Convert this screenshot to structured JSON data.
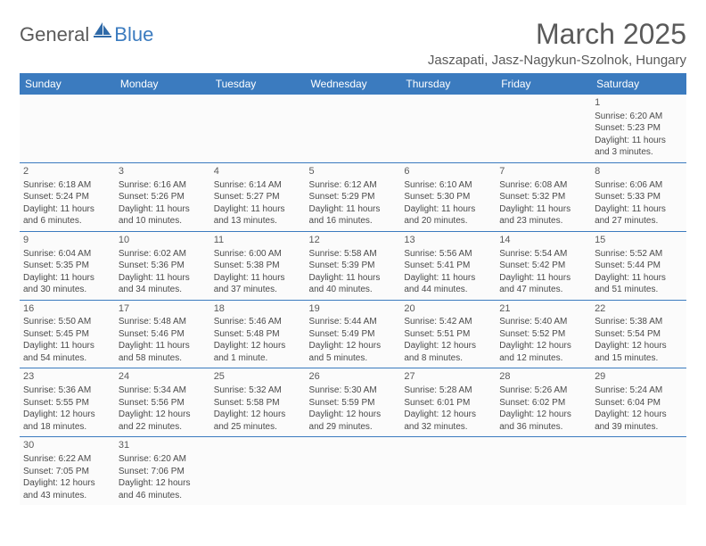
{
  "logo": {
    "general": "General",
    "blue": "Blue"
  },
  "title": "March 2025",
  "location": "Jaszapati, Jasz-Nagykun-Szolnok, Hungary",
  "colors": {
    "header_bg": "#3b7bbf",
    "header_text": "#ffffff",
    "cell_border": "#3b7bbf",
    "text": "#4a4a4a",
    "title_text": "#5a5a5a"
  },
  "daysOfWeek": [
    "Sunday",
    "Monday",
    "Tuesday",
    "Wednesday",
    "Thursday",
    "Friday",
    "Saturday"
  ],
  "weeks": [
    [
      null,
      null,
      null,
      null,
      null,
      null,
      {
        "n": "1",
        "sr": "Sunrise: 6:20 AM",
        "ss": "Sunset: 5:23 PM",
        "d1": "Daylight: 11 hours",
        "d2": "and 3 minutes."
      }
    ],
    [
      {
        "n": "2",
        "sr": "Sunrise: 6:18 AM",
        "ss": "Sunset: 5:24 PM",
        "d1": "Daylight: 11 hours",
        "d2": "and 6 minutes."
      },
      {
        "n": "3",
        "sr": "Sunrise: 6:16 AM",
        "ss": "Sunset: 5:26 PM",
        "d1": "Daylight: 11 hours",
        "d2": "and 10 minutes."
      },
      {
        "n": "4",
        "sr": "Sunrise: 6:14 AM",
        "ss": "Sunset: 5:27 PM",
        "d1": "Daylight: 11 hours",
        "d2": "and 13 minutes."
      },
      {
        "n": "5",
        "sr": "Sunrise: 6:12 AM",
        "ss": "Sunset: 5:29 PM",
        "d1": "Daylight: 11 hours",
        "d2": "and 16 minutes."
      },
      {
        "n": "6",
        "sr": "Sunrise: 6:10 AM",
        "ss": "Sunset: 5:30 PM",
        "d1": "Daylight: 11 hours",
        "d2": "and 20 minutes."
      },
      {
        "n": "7",
        "sr": "Sunrise: 6:08 AM",
        "ss": "Sunset: 5:32 PM",
        "d1": "Daylight: 11 hours",
        "d2": "and 23 minutes."
      },
      {
        "n": "8",
        "sr": "Sunrise: 6:06 AM",
        "ss": "Sunset: 5:33 PM",
        "d1": "Daylight: 11 hours",
        "d2": "and 27 minutes."
      }
    ],
    [
      {
        "n": "9",
        "sr": "Sunrise: 6:04 AM",
        "ss": "Sunset: 5:35 PM",
        "d1": "Daylight: 11 hours",
        "d2": "and 30 minutes."
      },
      {
        "n": "10",
        "sr": "Sunrise: 6:02 AM",
        "ss": "Sunset: 5:36 PM",
        "d1": "Daylight: 11 hours",
        "d2": "and 34 minutes."
      },
      {
        "n": "11",
        "sr": "Sunrise: 6:00 AM",
        "ss": "Sunset: 5:38 PM",
        "d1": "Daylight: 11 hours",
        "d2": "and 37 minutes."
      },
      {
        "n": "12",
        "sr": "Sunrise: 5:58 AM",
        "ss": "Sunset: 5:39 PM",
        "d1": "Daylight: 11 hours",
        "d2": "and 40 minutes."
      },
      {
        "n": "13",
        "sr": "Sunrise: 5:56 AM",
        "ss": "Sunset: 5:41 PM",
        "d1": "Daylight: 11 hours",
        "d2": "and 44 minutes."
      },
      {
        "n": "14",
        "sr": "Sunrise: 5:54 AM",
        "ss": "Sunset: 5:42 PM",
        "d1": "Daylight: 11 hours",
        "d2": "and 47 minutes."
      },
      {
        "n": "15",
        "sr": "Sunrise: 5:52 AM",
        "ss": "Sunset: 5:44 PM",
        "d1": "Daylight: 11 hours",
        "d2": "and 51 minutes."
      }
    ],
    [
      {
        "n": "16",
        "sr": "Sunrise: 5:50 AM",
        "ss": "Sunset: 5:45 PM",
        "d1": "Daylight: 11 hours",
        "d2": "and 54 minutes."
      },
      {
        "n": "17",
        "sr": "Sunrise: 5:48 AM",
        "ss": "Sunset: 5:46 PM",
        "d1": "Daylight: 11 hours",
        "d2": "and 58 minutes."
      },
      {
        "n": "18",
        "sr": "Sunrise: 5:46 AM",
        "ss": "Sunset: 5:48 PM",
        "d1": "Daylight: 12 hours",
        "d2": "and 1 minute."
      },
      {
        "n": "19",
        "sr": "Sunrise: 5:44 AM",
        "ss": "Sunset: 5:49 PM",
        "d1": "Daylight: 12 hours",
        "d2": "and 5 minutes."
      },
      {
        "n": "20",
        "sr": "Sunrise: 5:42 AM",
        "ss": "Sunset: 5:51 PM",
        "d1": "Daylight: 12 hours",
        "d2": "and 8 minutes."
      },
      {
        "n": "21",
        "sr": "Sunrise: 5:40 AM",
        "ss": "Sunset: 5:52 PM",
        "d1": "Daylight: 12 hours",
        "d2": "and 12 minutes."
      },
      {
        "n": "22",
        "sr": "Sunrise: 5:38 AM",
        "ss": "Sunset: 5:54 PM",
        "d1": "Daylight: 12 hours",
        "d2": "and 15 minutes."
      }
    ],
    [
      {
        "n": "23",
        "sr": "Sunrise: 5:36 AM",
        "ss": "Sunset: 5:55 PM",
        "d1": "Daylight: 12 hours",
        "d2": "and 18 minutes."
      },
      {
        "n": "24",
        "sr": "Sunrise: 5:34 AM",
        "ss": "Sunset: 5:56 PM",
        "d1": "Daylight: 12 hours",
        "d2": "and 22 minutes."
      },
      {
        "n": "25",
        "sr": "Sunrise: 5:32 AM",
        "ss": "Sunset: 5:58 PM",
        "d1": "Daylight: 12 hours",
        "d2": "and 25 minutes."
      },
      {
        "n": "26",
        "sr": "Sunrise: 5:30 AM",
        "ss": "Sunset: 5:59 PM",
        "d1": "Daylight: 12 hours",
        "d2": "and 29 minutes."
      },
      {
        "n": "27",
        "sr": "Sunrise: 5:28 AM",
        "ss": "Sunset: 6:01 PM",
        "d1": "Daylight: 12 hours",
        "d2": "and 32 minutes."
      },
      {
        "n": "28",
        "sr": "Sunrise: 5:26 AM",
        "ss": "Sunset: 6:02 PM",
        "d1": "Daylight: 12 hours",
        "d2": "and 36 minutes."
      },
      {
        "n": "29",
        "sr": "Sunrise: 5:24 AM",
        "ss": "Sunset: 6:04 PM",
        "d1": "Daylight: 12 hours",
        "d2": "and 39 minutes."
      }
    ],
    [
      {
        "n": "30",
        "sr": "Sunrise: 6:22 AM",
        "ss": "Sunset: 7:05 PM",
        "d1": "Daylight: 12 hours",
        "d2": "and 43 minutes."
      },
      {
        "n": "31",
        "sr": "Sunrise: 6:20 AM",
        "ss": "Sunset: 7:06 PM",
        "d1": "Daylight: 12 hours",
        "d2": "and 46 minutes."
      },
      null,
      null,
      null,
      null,
      null
    ]
  ]
}
